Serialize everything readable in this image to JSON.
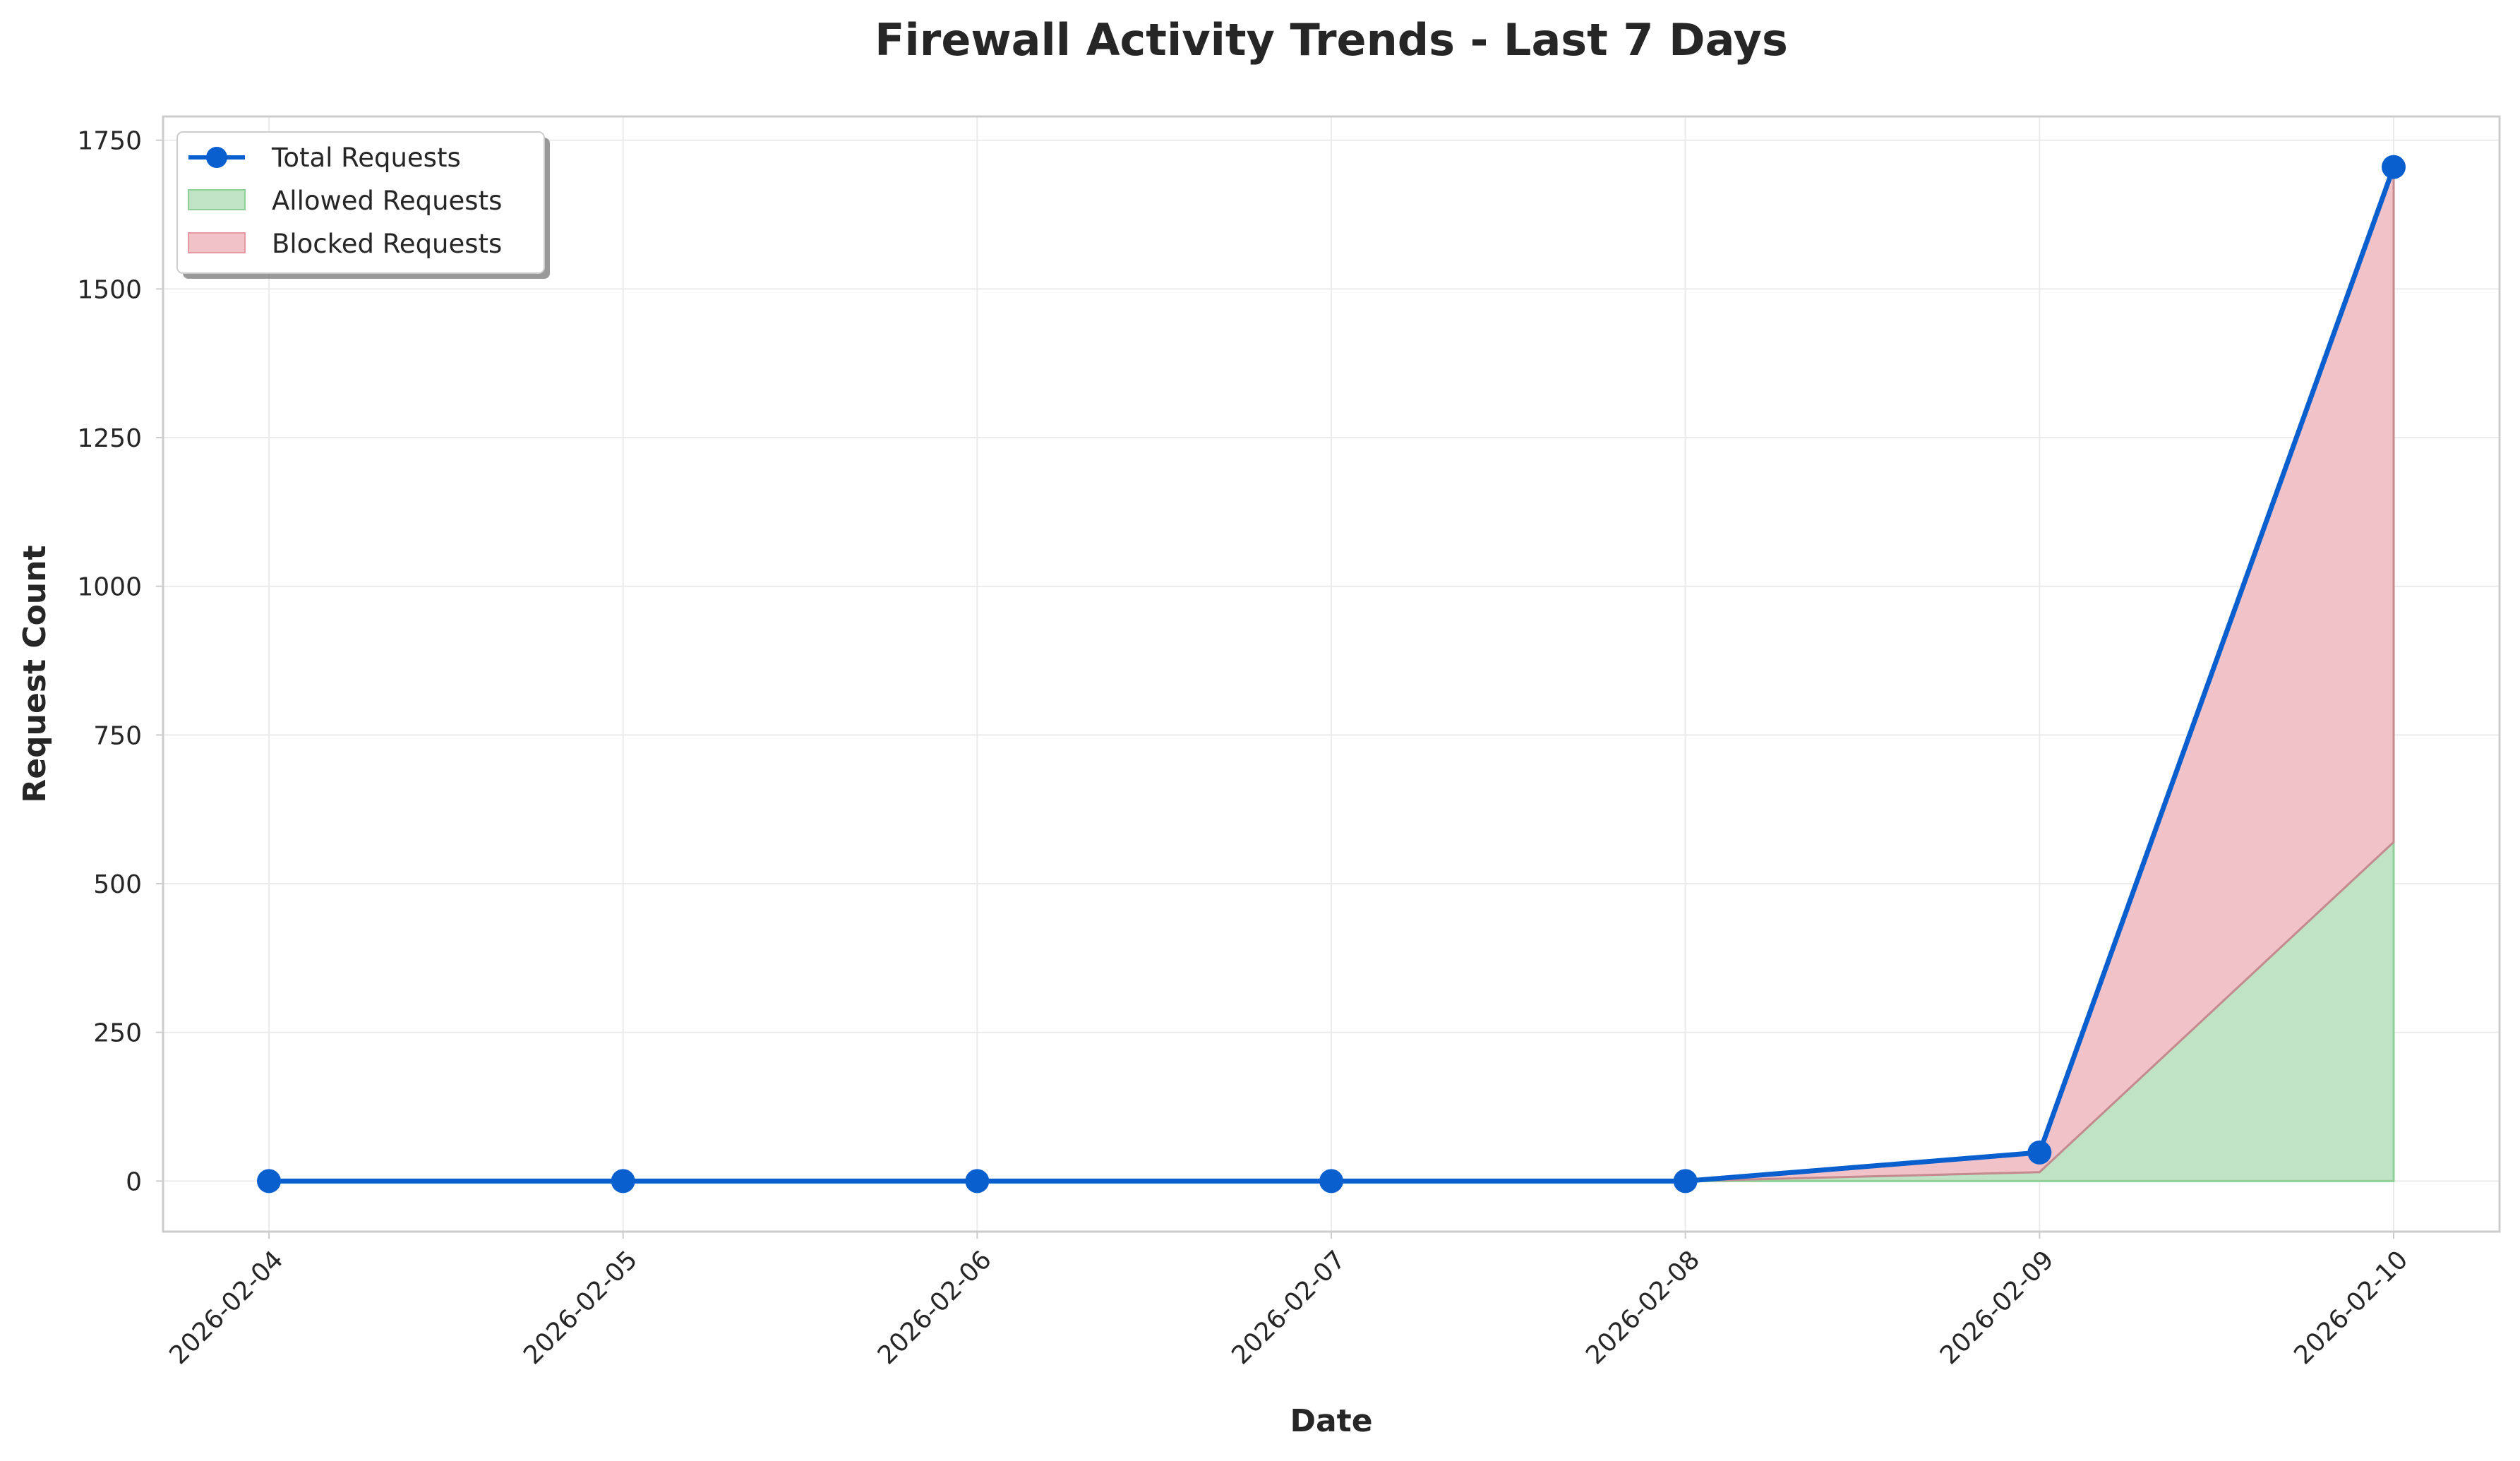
{
  "chart_data": {
    "type": "line",
    "title": "Firewall Activity Trends - Last 7 Days",
    "xlabel": "Date",
    "ylabel": "Request Count",
    "categories": [
      "2026-02-04",
      "2026-02-05",
      "2026-02-06",
      "2026-02-07",
      "2026-02-08",
      "2026-02-09",
      "2026-02-10"
    ],
    "yticks": [
      0,
      250,
      500,
      750,
      1000,
      1250,
      1500,
      1750
    ],
    "ylim": [
      -85,
      1790
    ],
    "grid": true,
    "legend_position": "top-left",
    "series": [
      {
        "name": "Total Requests",
        "kind": "line",
        "color": "#0a5fcf",
        "values": [
          0,
          0,
          0,
          0,
          0,
          48,
          1705
        ]
      },
      {
        "name": "Allowed Requests",
        "kind": "area",
        "color": "#bfe3c4",
        "values": [
          0,
          0,
          0,
          0,
          0,
          15,
          570
        ]
      },
      {
        "name": "Blocked Requests",
        "kind": "area",
        "color": "#f2c2c9",
        "values": [
          0,
          0,
          0,
          0,
          0,
          33,
          1135
        ]
      }
    ]
  }
}
